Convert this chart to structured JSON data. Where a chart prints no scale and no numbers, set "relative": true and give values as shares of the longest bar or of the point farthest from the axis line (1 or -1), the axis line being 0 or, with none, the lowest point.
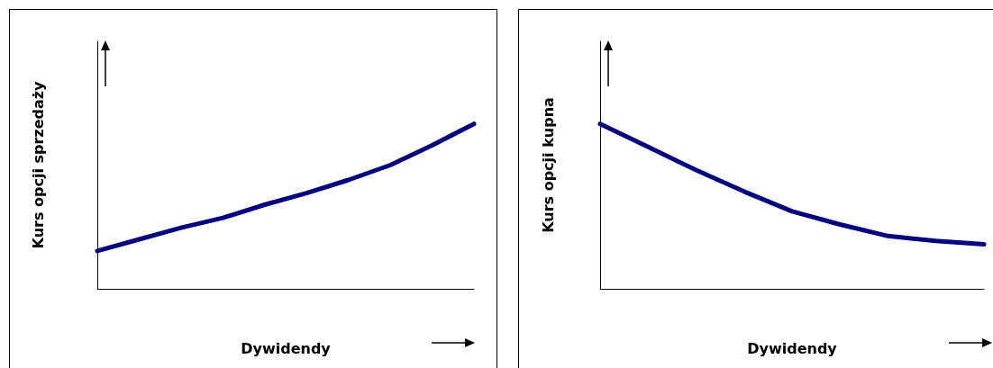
{
  "chart_data": [
    {
      "type": "line",
      "relative": true,
      "xlabel": "Dywidendy",
      "ylabel": "Kurs opcji sprzedaży",
      "categories": [
        null,
        null,
        null,
        null,
        null,
        null,
        null,
        null,
        null,
        null
      ],
      "values": [
        0.23,
        0.3,
        0.37,
        0.43,
        0.51,
        0.58,
        0.66,
        0.75,
        0.87,
        1.0
      ],
      "color": "#000080",
      "marker": "none",
      "line_style": "solid"
    },
    {
      "type": "line",
      "relative": true,
      "xlabel": "Dywidendy",
      "ylabel": "Kurs opcji kupna",
      "categories": [
        null,
        null,
        null,
        null,
        null,
        null,
        null,
        null,
        null
      ],
      "values": [
        1.0,
        0.86,
        0.72,
        0.59,
        0.47,
        0.39,
        0.32,
        0.29,
        0.27
      ],
      "color": "#000080",
      "marker": "none",
      "line_style": "solid"
    }
  ]
}
